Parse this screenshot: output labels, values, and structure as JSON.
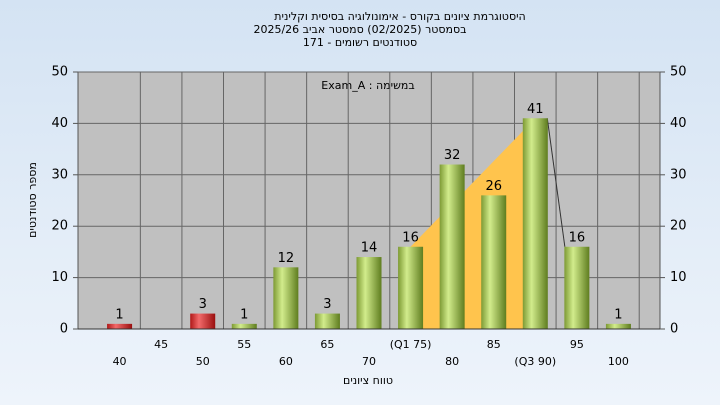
{
  "chart_data": {
    "type": "bar",
    "title": [
      "היסטוגרמת ציונים בקורס - אימונולוגיה בסיסית וקלינית",
      "בסמסטר  (02/2025)  סמסטר אביב 2025/26",
      "סטודנטים רשומים - 171"
    ],
    "annotation": "במשימה : Exam_A",
    "x_label": "טווח ציונים",
    "y_label": "מספר סטודנטים",
    "categories": [
      "40",
      "45",
      "50",
      "55",
      "60",
      "65",
      "70",
      "(Q1 75)",
      "80",
      "85",
      "(Q3 90)",
      "95",
      "100"
    ],
    "values": [
      1,
      null,
      3,
      1,
      12,
      3,
      14,
      16,
      32,
      26,
      41,
      16,
      1
    ],
    "colors": [
      "red",
      "red",
      "red",
      "green",
      "green",
      "green",
      "green",
      "green",
      "green",
      "green",
      "green",
      "green",
      "green"
    ],
    "quartile_fill": "#ffc44d",
    "ylim": [
      0,
      50
    ],
    "yticks": [
      0,
      10,
      20,
      30,
      40,
      50
    ],
    "y2lim": [
      0,
      50
    ],
    "y2ticks": [
      0,
      10,
      20,
      30,
      40,
      50
    ],
    "grid": true
  }
}
